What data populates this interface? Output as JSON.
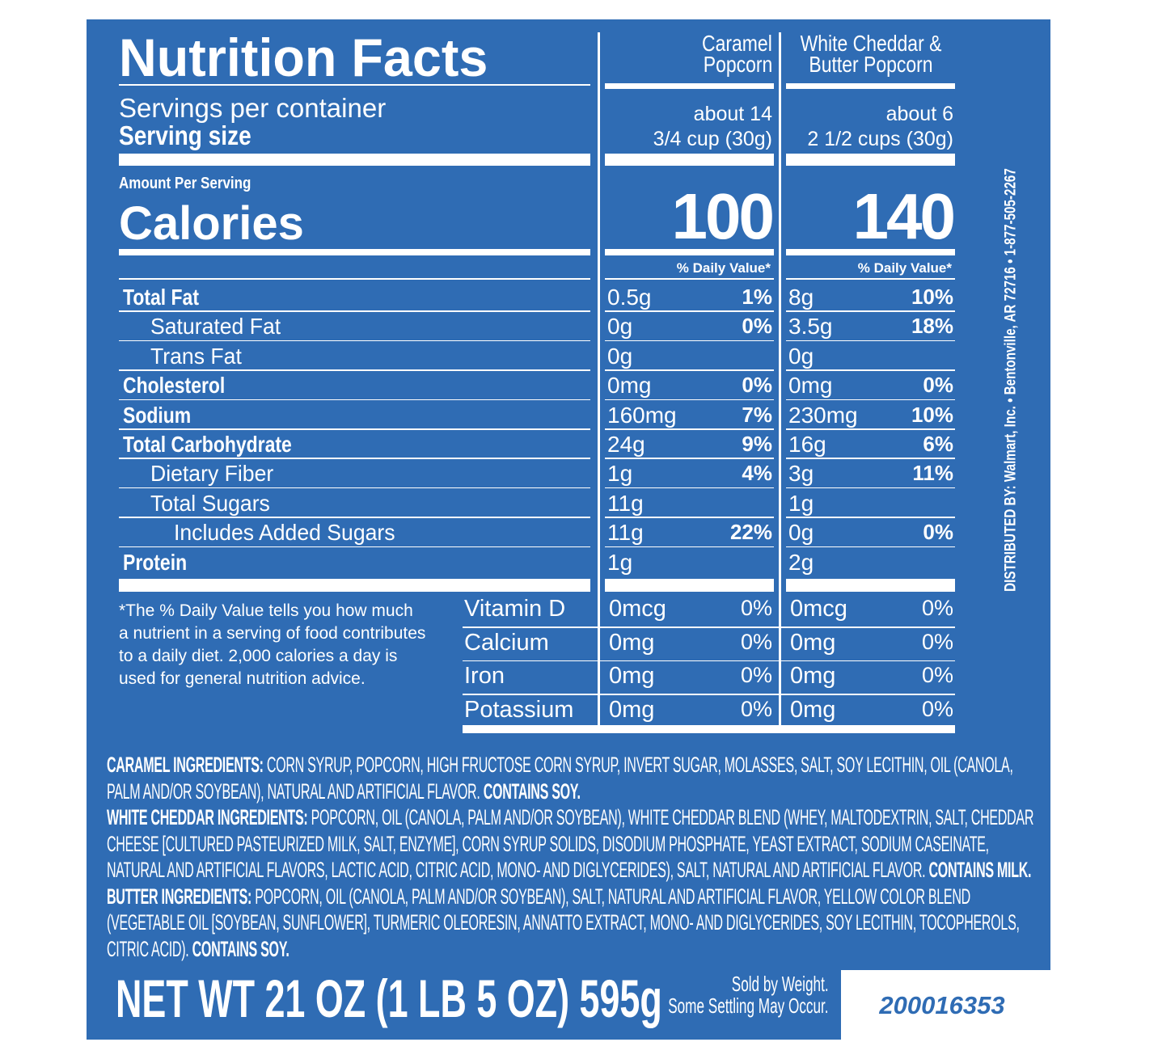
{
  "header": {
    "title": "Nutrition Facts"
  },
  "columns": [
    {
      "name_lines": [
        "Caramel",
        "Popcorn"
      ],
      "servings": "about 14",
      "serving_size": "3/4 cup (30g)",
      "calories": 100,
      "dv_header": "% Daily Value*"
    },
    {
      "name_lines": [
        "White Cheddar &",
        "Butter Popcorn"
      ],
      "servings": "about 6",
      "serving_size": "2 1/2 cups (30g)",
      "calories": 140,
      "dv_header": "% Daily Value*"
    }
  ],
  "servings_label": "Servings per container",
  "serving_size_label": "Serving size",
  "amount_per_serving": "Amount Per Serving",
  "calories_label": "Calories",
  "nutrients": [
    {
      "label": "Total Fat",
      "bold": true,
      "indent": 0,
      "values": [
        [
          "0.5g",
          "1%"
        ],
        [
          "8g",
          "10%"
        ]
      ]
    },
    {
      "label": "Saturated Fat",
      "bold": false,
      "indent": 1,
      "values": [
        [
          "0g",
          "0%"
        ],
        [
          "3.5g",
          "18%"
        ]
      ]
    },
    {
      "label": "Trans Fat",
      "bold": false,
      "indent": 1,
      "values": [
        [
          "0g",
          null
        ],
        [
          "0g",
          null
        ]
      ]
    },
    {
      "label": "Cholesterol",
      "bold": true,
      "indent": 0,
      "values": [
        [
          "0mg",
          "0%"
        ],
        [
          "0mg",
          "0%"
        ]
      ]
    },
    {
      "label": "Sodium",
      "bold": true,
      "indent": 0,
      "values": [
        [
          "160mg",
          "7%"
        ],
        [
          "230mg",
          "10%"
        ]
      ]
    },
    {
      "label": "Total Carbohydrate",
      "bold": true,
      "indent": 0,
      "values": [
        [
          "24g",
          "9%"
        ],
        [
          "16g",
          "6%"
        ]
      ]
    },
    {
      "label": "Dietary Fiber",
      "bold": false,
      "indent": 1,
      "values": [
        [
          "1g",
          "4%"
        ],
        [
          "3g",
          "11%"
        ]
      ]
    },
    {
      "label": "Total Sugars",
      "bold": false,
      "indent": 1,
      "values": [
        [
          "11g",
          null
        ],
        [
          "1g",
          null
        ]
      ]
    },
    {
      "label": "Includes Added Sugars",
      "bold": false,
      "indent": 2,
      "values": [
        [
          "11g",
          "22%"
        ],
        [
          "0g",
          "0%"
        ]
      ]
    },
    {
      "label": "Protein",
      "bold": true,
      "indent": 0,
      "values": [
        [
          "1g",
          null
        ],
        [
          "2g",
          null
        ]
      ]
    }
  ],
  "footnote": "*The % Daily Value tells you how much a nutrient in a serving of food contributes to a daily diet. 2,000 calories a day is used for general nutrition advice.",
  "vitamins": [
    {
      "label": "Vitamin D",
      "values": [
        [
          "0mcg",
          "0%"
        ],
        [
          "0mcg",
          "0%"
        ]
      ]
    },
    {
      "label": "Calcium",
      "values": [
        [
          "0mg",
          "0%"
        ],
        [
          "0mg",
          "0%"
        ]
      ]
    },
    {
      "label": "Iron",
      "values": [
        [
          "0mg",
          "0%"
        ],
        [
          "0mg",
          "0%"
        ]
      ]
    },
    {
      "label": "Potassium",
      "values": [
        [
          "0mg",
          "0%"
        ],
        [
          "0mg",
          "0%"
        ]
      ]
    }
  ],
  "ingredients": [
    {
      "heading": "CARAMEL INGREDIENTS:",
      "text": "CORN SYRUP, POPCORN, HIGH FRUCTOSE CORN SYRUP, INVERT SUGAR, MOLASSES, SALT, SOY LECITHIN, OIL (CANOLA, PALM AND/OR SOYBEAN), NATURAL AND ARTIFICIAL FLAVOR.",
      "contains": "CONTAINS SOY."
    },
    {
      "heading": "WHITE CHEDDAR INGREDIENTS:",
      "text": "POPCORN, OIL (CANOLA, PALM AND/OR SOYBEAN), WHITE CHEDDAR BLEND (WHEY, MALTODEXTRIN, SALT, CHEDDAR CHEESE [CULTURED PASTEURIZED MILK, SALT, ENZYME], CORN SYRUP SOLIDS, DISODIUM PHOSPHATE, YEAST EXTRACT, SODIUM CASEINATE, NATURAL AND ARTIFICIAL FLAVORS, LACTIC ACID, CITRIC ACID, MONO- AND DIGLYCERIDES), SALT, NATURAL AND ARTIFICIAL FLAVOR.",
      "contains": "CONTAINS MILK."
    },
    {
      "heading": "BUTTER INGREDIENTS:",
      "text": "POPCORN, OIL (CANOLA, PALM AND/OR SOYBEAN), SALT, NATURAL AND ARTIFICIAL FLAVOR, YELLOW COLOR BLEND (VEGETABLE OIL [SOYBEAN, SUNFLOWER], TURMERIC OLEORESIN, ANNATTO EXTRACT, MONO- AND DIGLYCERIDES, SOY LECITHIN, TOCOPHEROLS, CITRIC ACID).",
      "contains": "CONTAINS SOY."
    }
  ],
  "net_weight": "NET WT 21 OZ (1 LB 5 OZ) 595g",
  "sold_by": [
    "Sold by Weight.",
    "Some Settling May Occur."
  ],
  "item_code": "200016353",
  "distributor": "DISTRIBUTED BY: Walmart, Inc. • Bentonville, AR 72716 • 1-877-505-2267"
}
